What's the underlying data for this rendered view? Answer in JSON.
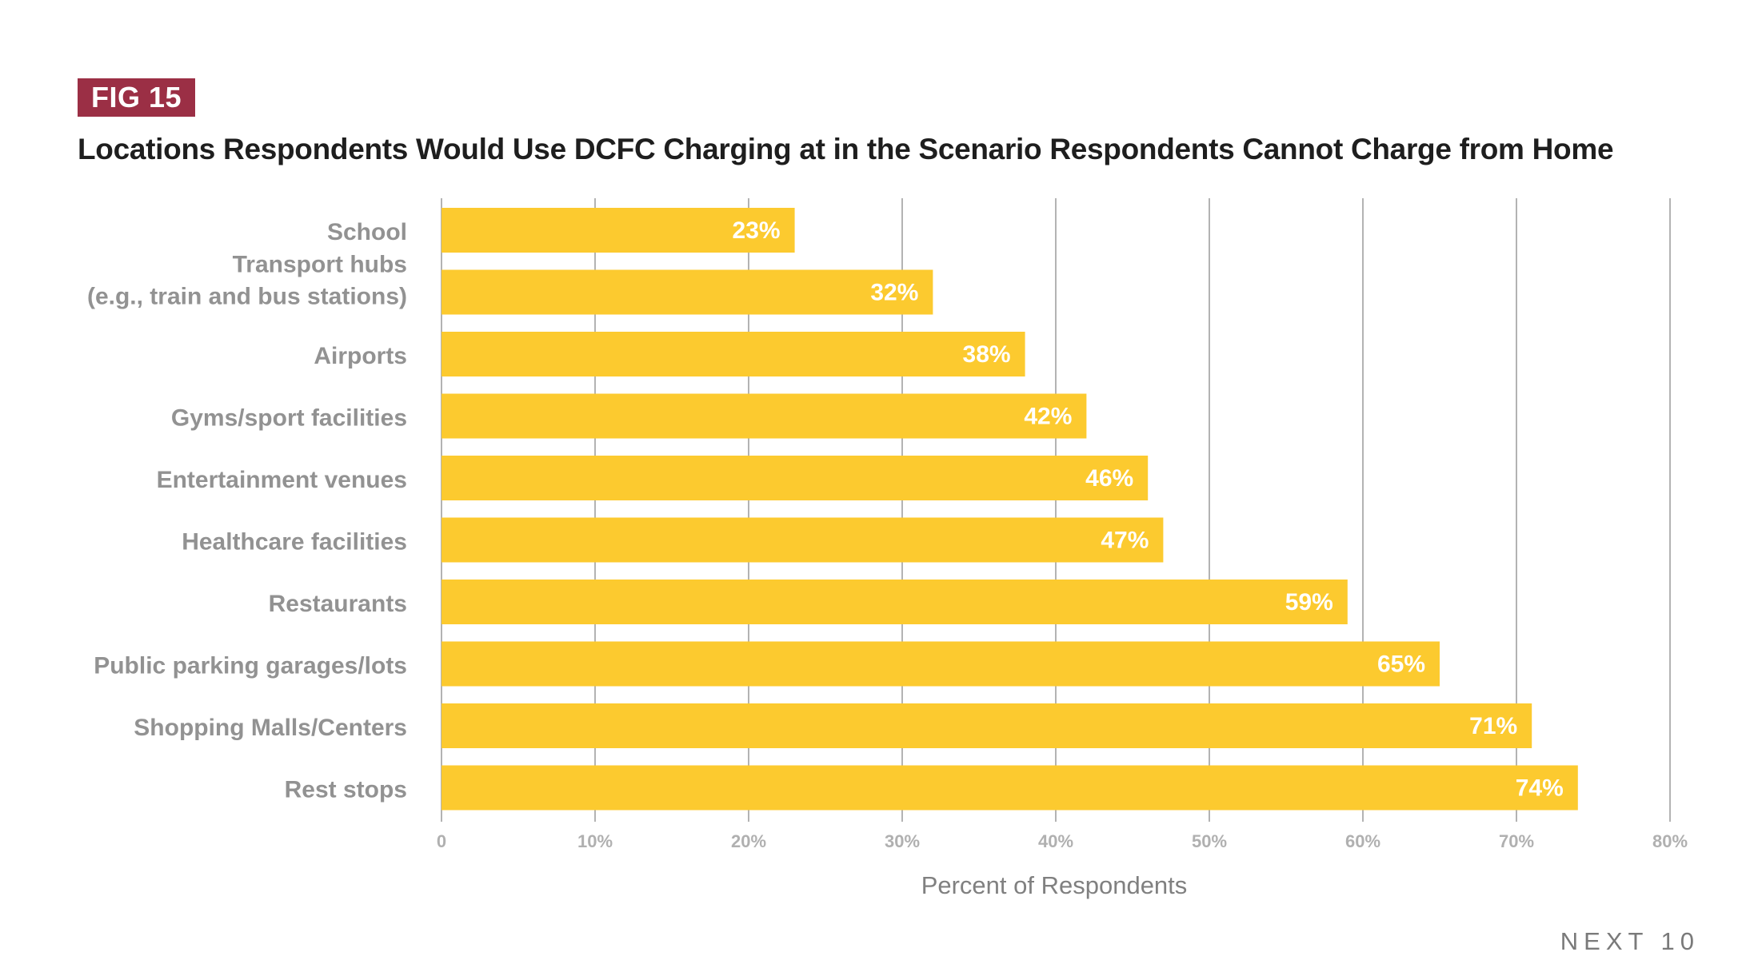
{
  "figure_label": "FIG 15",
  "brand": "NEXT 10",
  "colors": {
    "bar": "#fcca2f",
    "badge": "#9b2f45",
    "grid": "#9a9a9a"
  },
  "chart_data": {
    "type": "bar",
    "orientation": "horizontal",
    "title": "Locations Respondents Would Use DCFC Charging at in the Scenario Respondents Cannot Charge from Home",
    "xlabel": "Percent of Respondents",
    "ylabel": "",
    "xlim": [
      0,
      80
    ],
    "xticks": [
      "0",
      "10%",
      "20%",
      "30%",
      "40%",
      "50%",
      "60%",
      "70%",
      "80%"
    ],
    "grid": "vertical",
    "categories": [
      [
        "School"
      ],
      [
        "Transport hubs",
        "(e.g., train and bus stations)"
      ],
      [
        "Airports"
      ],
      [
        "Gyms/sport facilities"
      ],
      [
        "Entertainment venues"
      ],
      [
        "Healthcare facilities"
      ],
      [
        "Restaurants"
      ],
      [
        "Public parking garages/lots"
      ],
      [
        "Shopping Malls/Centers"
      ],
      [
        "Rest stops"
      ]
    ],
    "values": [
      23,
      32,
      38,
      42,
      46,
      47,
      59,
      65,
      71,
      74
    ],
    "data_labels": [
      "23%",
      "32%",
      "38%",
      "42%",
      "46%",
      "47%",
      "59%",
      "65%",
      "71%",
      "74%"
    ]
  }
}
